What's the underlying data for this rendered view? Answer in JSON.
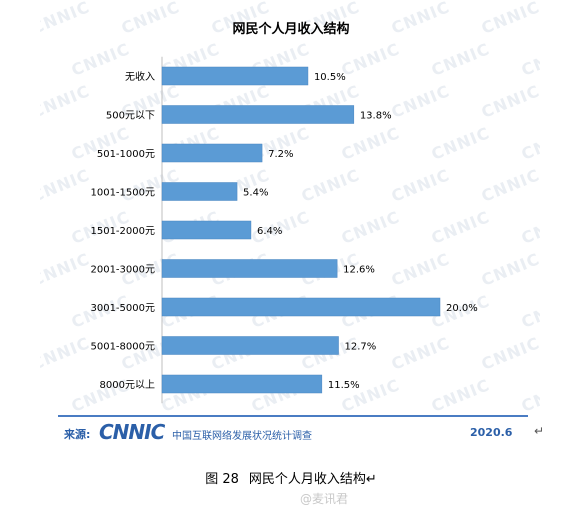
{
  "chart_data": {
    "type": "bar",
    "orientation": "horizontal",
    "title": "网民个人月收入结构",
    "categories": [
      "无收入",
      "500元以下",
      "501-1000元",
      "1001-1500元",
      "1501-2000元",
      "2001-3000元",
      "3001-5000元",
      "5001-8000元",
      "8000元以上"
    ],
    "values": [
      10.5,
      13.8,
      7.2,
      5.4,
      6.4,
      12.6,
      20.0,
      12.7,
      11.5
    ],
    "value_labels": [
      "10.5%",
      "13.8%",
      "7.2%",
      "5.4%",
      "6.4%",
      "12.6%",
      "20.0%",
      "12.7%",
      "11.5%"
    ],
    "xlim": [
      0,
      20
    ],
    "bar_color": "#5b9bd5",
    "grid": false,
    "legend": "none"
  },
  "footer": {
    "source_label": "来源:",
    "logo": "CNNIC",
    "org_name": "中国互联网络发展状况统计调查",
    "date": "2020.6",
    "line_color": "#4a7cc3"
  },
  "watermark": {
    "text": "CNNIC"
  },
  "caption": {
    "number": "图 28",
    "text": "网民个人月收入结构",
    "mark": "↵"
  },
  "weibo": {
    "text": "@麦讯君"
  },
  "edge_mark": "↵"
}
